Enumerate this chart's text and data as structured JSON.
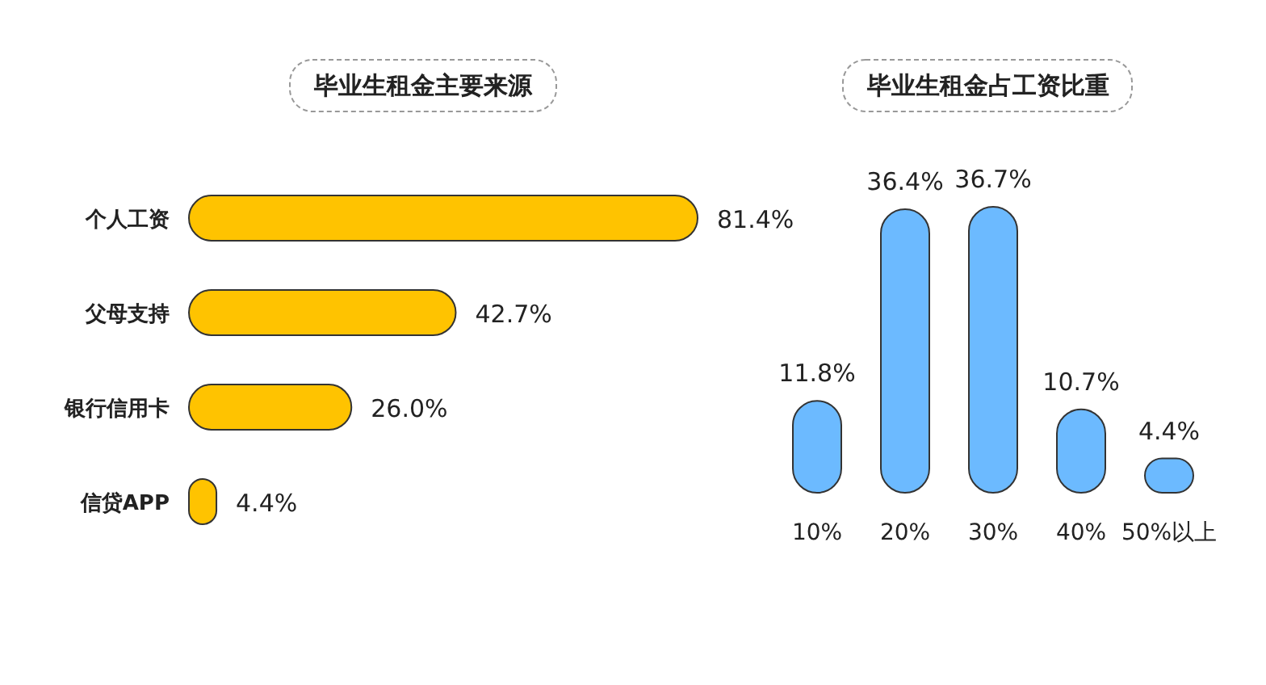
{
  "chart_data": [
    {
      "type": "bar",
      "orientation": "horizontal",
      "title": "毕业生租金主要来源",
      "categories": [
        "个人工资",
        "父母支持",
        "银行信用卡",
        "信贷APP"
      ],
      "values": [
        81.4,
        42.7,
        26.0,
        4.4
      ],
      "value_labels": [
        "81.4%",
        "42.7%",
        "26.0%",
        "4.4%"
      ],
      "color": "#ffc300"
    },
    {
      "type": "bar",
      "title": "毕业生租金占工资比重",
      "categories": [
        "10%",
        "20%",
        "30%",
        "40%",
        "50%以上"
      ],
      "values": [
        11.8,
        36.4,
        36.7,
        10.7,
        4.4
      ],
      "value_labels": [
        "11.8%",
        "36.4%",
        "36.7%",
        "10.7%",
        "4.4%"
      ],
      "color": "#6cbaff"
    }
  ]
}
